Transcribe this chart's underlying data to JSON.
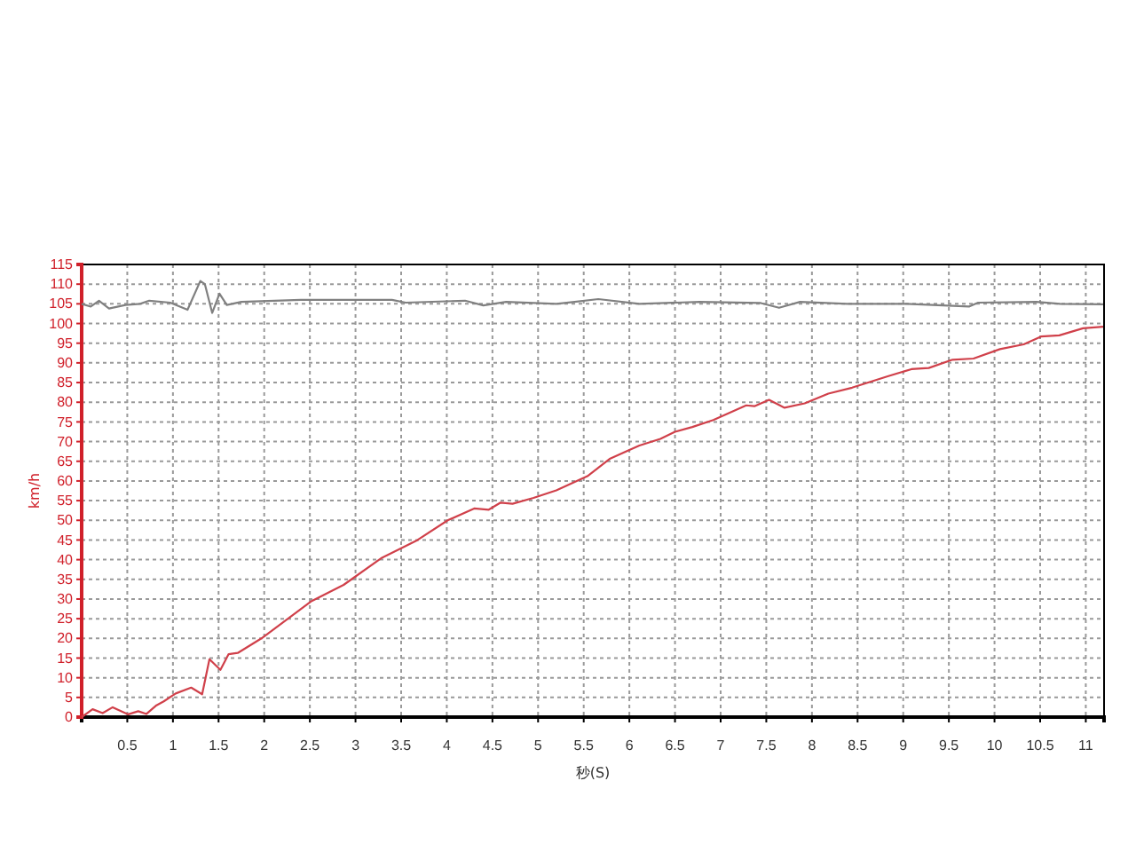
{
  "chart_data": {
    "type": "line",
    "xlabel": "秒(S)",
    "ylabel": "km/h",
    "xlim": [
      0,
      11.2
    ],
    "ylim": [
      0,
      115
    ],
    "xticks": [
      0.5,
      1,
      1.5,
      2,
      2.5,
      3,
      3.5,
      4,
      4.5,
      5,
      5.5,
      6,
      6.5,
      7,
      7.5,
      8,
      8.5,
      9,
      9.5,
      10,
      10.5,
      11
    ],
    "yticks": [
      0,
      5,
      10,
      15,
      20,
      25,
      30,
      35,
      40,
      45,
      50,
      55,
      60,
      65,
      70,
      75,
      80,
      85,
      90,
      95,
      100,
      105,
      110,
      115
    ],
    "grid": true,
    "marker": "none",
    "line_style": "solid",
    "series": [
      {
        "color": "#808080",
        "x": [
          0,
          0.1,
          0.19,
          0.3,
          0.48,
          0.64,
          0.74,
          0.97,
          1.16,
          1.3,
          1.35,
          1.43,
          1.51,
          1.59,
          1.75,
          2.4,
          2.9,
          3.4,
          3.55,
          4.2,
          4.4,
          4.65,
          5.2,
          5.4,
          5.66,
          6.11,
          6.77,
          7.44,
          7.64,
          7.87,
          8.39,
          9.04,
          9.72,
          9.82,
          10.46,
          10.72,
          11.19
        ],
        "values": [
          105,
          104.3,
          105.8,
          103.8,
          104.7,
          105,
          105.8,
          105.3,
          103.5,
          110.8,
          110,
          102.7,
          107.6,
          104.7,
          105.5,
          106,
          106,
          106,
          105.3,
          105.8,
          104.6,
          105.5,
          105,
          105.5,
          106.2,
          105,
          105.5,
          105.2,
          104,
          105.5,
          105,
          105,
          104.3,
          105.3,
          105.5,
          105,
          104.9
        ]
      },
      {
        "color": "#d0404a",
        "x": [
          0,
          0.12,
          0.23,
          0.34,
          0.51,
          0.62,
          0.71,
          0.82,
          0.9,
          1.03,
          1.2,
          1.32,
          1.4,
          1.52,
          1.61,
          1.71,
          1.97,
          2.52,
          2.87,
          3.29,
          3.51,
          3.68,
          4.01,
          4.3,
          4.46,
          4.59,
          4.72,
          4.95,
          5.2,
          5.54,
          5.79,
          6.11,
          6.34,
          6.5,
          6.69,
          6.92,
          7.28,
          7.37,
          7.53,
          7.7,
          7.92,
          8.18,
          8.44,
          8.83,
          9.09,
          9.28,
          9.54,
          9.77,
          10.06,
          10.32,
          10.51,
          10.71,
          10.97,
          11.19
        ],
        "values": [
          0,
          2,
          1,
          2.5,
          0.7,
          1.5,
          0.8,
          3,
          4,
          6,
          7.5,
          5.8,
          14.7,
          12,
          16,
          16.3,
          20,
          29.5,
          33.6,
          40.5,
          43,
          45,
          50,
          53,
          52.7,
          54.5,
          54.2,
          55.7,
          57.6,
          61.2,
          65.7,
          69,
          70.7,
          72.5,
          73.7,
          75.5,
          79.2,
          79,
          80.6,
          78.6,
          79.7,
          82.2,
          83.7,
          86.6,
          88.4,
          88.7,
          90.8,
          91.1,
          93.5,
          94.7,
          96.7,
          97,
          98.8,
          99.2
        ]
      }
    ]
  }
}
